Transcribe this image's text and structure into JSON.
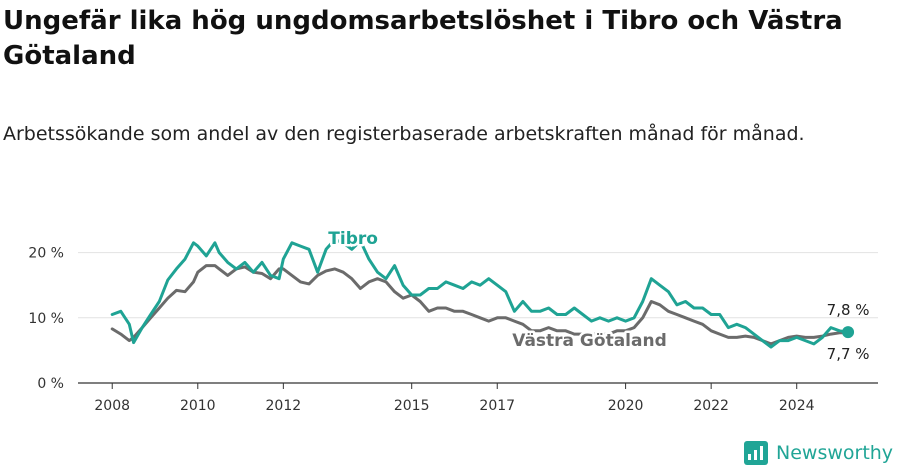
{
  "header": {
    "title": "Ungefär lika hög ungdomsarbetslöshet i Tibro och Västra Götaland",
    "subtitle": "Arbetssökande som andel av den registerbaserade arbetskraften månad för månad."
  },
  "brand": {
    "name": "Newsworthy",
    "icon": "bar-chart-logo-icon",
    "color": "#20a596"
  },
  "chart_data": {
    "type": "line",
    "x_unit": "year (decimal, monthly)",
    "x_ticks": [
      2008,
      2010,
      2012,
      2015,
      2017,
      2020,
      2022,
      2024
    ],
    "y_ticks": [
      0,
      10,
      20
    ],
    "y_tick_labels": [
      "0 %",
      "10 %",
      "20 %"
    ],
    "ylim": [
      0,
      25
    ],
    "xlim": [
      2007.2,
      2025.9
    ],
    "grid": "horizontal",
    "legend": "inline labels",
    "series": [
      {
        "name": "Tibro",
        "color": "#1fa394",
        "points": [
          [
            2008.0,
            10.5
          ],
          [
            2008.2,
            11.0
          ],
          [
            2008.4,
            9.0
          ],
          [
            2008.5,
            6.2
          ],
          [
            2008.7,
            8.5
          ],
          [
            2008.9,
            10.5
          ],
          [
            2009.1,
            12.5
          ],
          [
            2009.3,
            15.8
          ],
          [
            2009.5,
            17.5
          ],
          [
            2009.7,
            19.0
          ],
          [
            2009.9,
            21.5
          ],
          [
            2010.0,
            21.0
          ],
          [
            2010.2,
            19.5
          ],
          [
            2010.4,
            21.5
          ],
          [
            2010.5,
            20.0
          ],
          [
            2010.7,
            18.5
          ],
          [
            2010.9,
            17.5
          ],
          [
            2011.1,
            18.5
          ],
          [
            2011.3,
            17.0
          ],
          [
            2011.5,
            18.5
          ],
          [
            2011.7,
            16.5
          ],
          [
            2011.9,
            16.0
          ],
          [
            2012.0,
            19.0
          ],
          [
            2012.2,
            21.5
          ],
          [
            2012.4,
            21.0
          ],
          [
            2012.6,
            20.5
          ],
          [
            2012.8,
            17.0
          ],
          [
            2013.0,
            20.5
          ],
          [
            2013.2,
            22.0
          ],
          [
            2013.4,
            21.5
          ],
          [
            2013.6,
            20.5
          ],
          [
            2013.8,
            21.8
          ],
          [
            2014.0,
            19.0
          ],
          [
            2014.2,
            17.0
          ],
          [
            2014.4,
            16.0
          ],
          [
            2014.6,
            18.0
          ],
          [
            2014.8,
            15.0
          ],
          [
            2015.0,
            13.5
          ],
          [
            2015.2,
            13.5
          ],
          [
            2015.4,
            14.5
          ],
          [
            2015.6,
            14.5
          ],
          [
            2015.8,
            15.5
          ],
          [
            2016.0,
            15.0
          ],
          [
            2016.2,
            14.5
          ],
          [
            2016.4,
            15.5
          ],
          [
            2016.6,
            15.0
          ],
          [
            2016.8,
            16.0
          ],
          [
            2017.0,
            15.0
          ],
          [
            2017.2,
            14.0
          ],
          [
            2017.4,
            11.0
          ],
          [
            2017.6,
            12.5
          ],
          [
            2017.8,
            11.0
          ],
          [
            2018.0,
            11.0
          ],
          [
            2018.2,
            11.5
          ],
          [
            2018.4,
            10.5
          ],
          [
            2018.6,
            10.5
          ],
          [
            2018.8,
            11.5
          ],
          [
            2019.0,
            10.5
          ],
          [
            2019.2,
            9.5
          ],
          [
            2019.4,
            10.0
          ],
          [
            2019.6,
            9.5
          ],
          [
            2019.8,
            10.0
          ],
          [
            2020.0,
            9.5
          ],
          [
            2020.2,
            10.0
          ],
          [
            2020.4,
            12.5
          ],
          [
            2020.6,
            16.0
          ],
          [
            2020.8,
            15.0
          ],
          [
            2021.0,
            14.0
          ],
          [
            2021.2,
            12.0
          ],
          [
            2021.4,
            12.5
          ],
          [
            2021.6,
            11.5
          ],
          [
            2021.8,
            11.5
          ],
          [
            2022.0,
            10.5
          ],
          [
            2022.2,
            10.5
          ],
          [
            2022.4,
            8.5
          ],
          [
            2022.6,
            9.0
          ],
          [
            2022.8,
            8.5
          ],
          [
            2023.0,
            7.5
          ],
          [
            2023.2,
            6.5
          ],
          [
            2023.4,
            5.5
          ],
          [
            2023.6,
            6.5
          ],
          [
            2023.8,
            6.5
          ],
          [
            2024.0,
            7.0
          ],
          [
            2024.2,
            6.5
          ],
          [
            2024.4,
            6.0
          ],
          [
            2024.6,
            7.0
          ],
          [
            2024.8,
            8.5
          ],
          [
            2025.0,
            8.0
          ],
          [
            2025.2,
            7.8
          ]
        ],
        "end_label": "7,8 %",
        "last_value": 7.8
      },
      {
        "name": "Västra Götaland",
        "color": "#6b6b6b",
        "points": [
          [
            2008.0,
            8.3
          ],
          [
            2008.2,
            7.5
          ],
          [
            2008.4,
            6.5
          ],
          [
            2008.5,
            7.0
          ],
          [
            2008.7,
            8.5
          ],
          [
            2008.9,
            10.0
          ],
          [
            2009.1,
            11.5
          ],
          [
            2009.3,
            13.0
          ],
          [
            2009.5,
            14.2
          ],
          [
            2009.7,
            14.0
          ],
          [
            2009.9,
            15.5
          ],
          [
            2010.0,
            17.0
          ],
          [
            2010.2,
            18.0
          ],
          [
            2010.4,
            18.0
          ],
          [
            2010.5,
            17.5
          ],
          [
            2010.7,
            16.5
          ],
          [
            2010.9,
            17.5
          ],
          [
            2011.1,
            17.8
          ],
          [
            2011.3,
            17.0
          ],
          [
            2011.5,
            16.8
          ],
          [
            2011.7,
            16.0
          ],
          [
            2011.9,
            17.5
          ],
          [
            2012.0,
            17.5
          ],
          [
            2012.2,
            16.5
          ],
          [
            2012.4,
            15.5
          ],
          [
            2012.6,
            15.2
          ],
          [
            2012.8,
            16.5
          ],
          [
            2013.0,
            17.2
          ],
          [
            2013.2,
            17.5
          ],
          [
            2013.4,
            17.0
          ],
          [
            2013.6,
            16.0
          ],
          [
            2013.8,
            14.5
          ],
          [
            2014.0,
            15.5
          ],
          [
            2014.2,
            16.0
          ],
          [
            2014.4,
            15.5
          ],
          [
            2014.6,
            14.0
          ],
          [
            2014.8,
            13.0
          ],
          [
            2015.0,
            13.5
          ],
          [
            2015.2,
            12.5
          ],
          [
            2015.4,
            11.0
          ],
          [
            2015.6,
            11.5
          ],
          [
            2015.8,
            11.5
          ],
          [
            2016.0,
            11.0
          ],
          [
            2016.2,
            11.0
          ],
          [
            2016.4,
            10.5
          ],
          [
            2016.6,
            10.0
          ],
          [
            2016.8,
            9.5
          ],
          [
            2017.0,
            10.0
          ],
          [
            2017.2,
            10.0
          ],
          [
            2017.4,
            9.5
          ],
          [
            2017.6,
            9.0
          ],
          [
            2017.8,
            8.0
          ],
          [
            2018.0,
            8.0
          ],
          [
            2018.2,
            8.5
          ],
          [
            2018.4,
            8.0
          ],
          [
            2018.6,
            8.0
          ],
          [
            2018.8,
            7.5
          ],
          [
            2019.0,
            7.5
          ],
          [
            2019.2,
            7.5
          ],
          [
            2019.4,
            7.5
          ],
          [
            2019.6,
            7.5
          ],
          [
            2019.8,
            8.0
          ],
          [
            2020.0,
            8.0
          ],
          [
            2020.2,
            8.5
          ],
          [
            2020.4,
            10.0
          ],
          [
            2020.6,
            12.5
          ],
          [
            2020.8,
            12.0
          ],
          [
            2021.0,
            11.0
          ],
          [
            2021.2,
            10.5
          ],
          [
            2021.4,
            10.0
          ],
          [
            2021.6,
            9.5
          ],
          [
            2021.8,
            9.0
          ],
          [
            2022.0,
            8.0
          ],
          [
            2022.2,
            7.5
          ],
          [
            2022.4,
            7.0
          ],
          [
            2022.6,
            7.0
          ],
          [
            2022.8,
            7.2
          ],
          [
            2023.0,
            7.0
          ],
          [
            2023.2,
            6.5
          ],
          [
            2023.4,
            6.0
          ],
          [
            2023.6,
            6.5
          ],
          [
            2023.8,
            7.0
          ],
          [
            2024.0,
            7.2
          ],
          [
            2024.2,
            7.0
          ],
          [
            2024.4,
            7.0
          ],
          [
            2024.6,
            7.2
          ],
          [
            2024.8,
            7.5
          ],
          [
            2025.0,
            7.7
          ],
          [
            2025.2,
            7.7
          ]
        ],
        "end_label": "7,7 %",
        "last_value": 7.7
      }
    ]
  }
}
